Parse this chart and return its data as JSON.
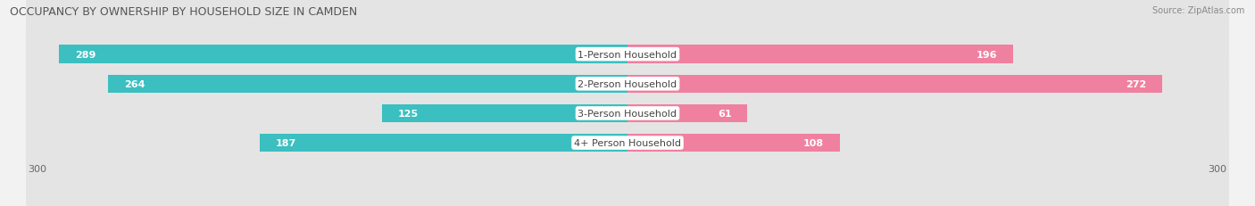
{
  "title": "OCCUPANCY BY OWNERSHIP BY HOUSEHOLD SIZE IN CAMDEN",
  "source": "Source: ZipAtlas.com",
  "categories": [
    "1-Person Household",
    "2-Person Household",
    "3-Person Household",
    "4+ Person Household"
  ],
  "owner_values": [
    289,
    264,
    125,
    187
  ],
  "renter_values": [
    196,
    272,
    61,
    108
  ],
  "owner_color": "#3bbfc0",
  "renter_color": "#f080a0",
  "axis_max": 300,
  "background_color": "#f2f2f2",
  "row_bg_color": "#e4e4e4",
  "title_fontsize": 9,
  "label_fontsize": 8,
  "category_fontsize": 8,
  "axis_tick_fontsize": 8,
  "source_fontsize": 7
}
